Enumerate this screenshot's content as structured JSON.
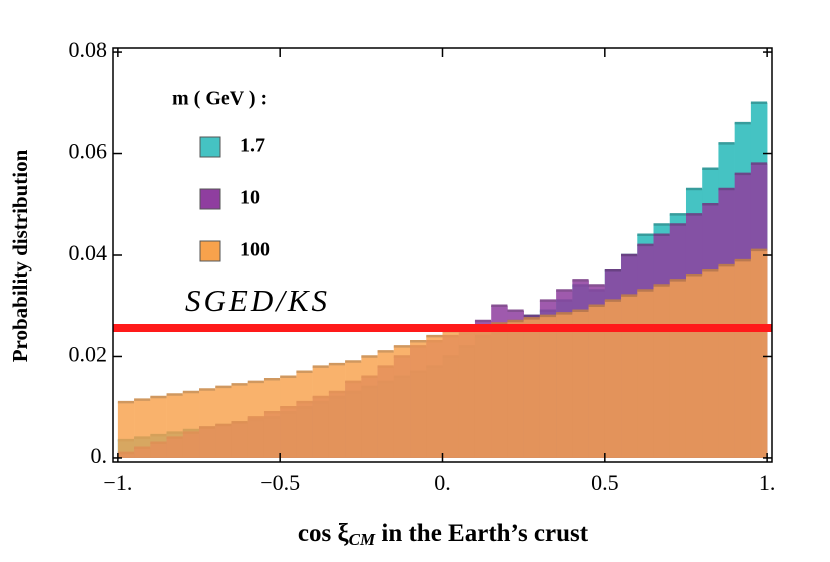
{
  "chart_data": {
    "type": "histogram",
    "y_label": "Probability distribution",
    "x_label": [
      "cos ξ",
      "CM",
      " in the Earth’s crust"
    ],
    "legend_title": "m ( GeV ) :",
    "bins": [
      -1,
      -0.95,
      -0.9,
      -0.85,
      -0.8,
      -0.75,
      -0.7,
      -0.65,
      -0.6,
      -0.55,
      -0.5,
      -0.45,
      -0.4,
      -0.35,
      -0.3,
      -0.25,
      -0.2,
      -0.15,
      -0.1,
      -0.05,
      0,
      0.05,
      0.1,
      0.15,
      0.2,
      0.25,
      0.3,
      0.35,
      0.4,
      0.45,
      0.5,
      0.55,
      0.6,
      0.65,
      0.7,
      0.75,
      0.8,
      0.85,
      0.9,
      0.95,
      1
    ],
    "series": [
      {
        "name": "1.7",
        "color": "#45c3c3",
        "values": [
          0.0035,
          0.004,
          0.0045,
          0.005,
          0.0055,
          0.006,
          0.0065,
          0.007,
          0.0075,
          0.008,
          0.009,
          0.01,
          0.011,
          0.012,
          0.013,
          0.014,
          0.015,
          0.016,
          0.017,
          0.018,
          0.02,
          0.022,
          0.024,
          0.026,
          0.027,
          0.028,
          0.029,
          0.031,
          0.034,
          0.033,
          0.037,
          0.04,
          0.044,
          0.046,
          0.048,
          0.053,
          0.057,
          0.062,
          0.066,
          0.07
        ]
      },
      {
        "name": "10",
        "color": "#8f3e9f",
        "values": [
          0.001,
          0.002,
          0.003,
          0.004,
          0.005,
          0.006,
          0.0065,
          0.007,
          0.008,
          0.009,
          0.01,
          0.011,
          0.012,
          0.013,
          0.015,
          0.016,
          0.018,
          0.02,
          0.022,
          0.023,
          0.024,
          0.026,
          0.027,
          0.03,
          0.029,
          0.028,
          0.031,
          0.033,
          0.035,
          0.034,
          0.037,
          0.04,
          0.042,
          0.044,
          0.046,
          0.048,
          0.05,
          0.053,
          0.056,
          0.058
        ]
      },
      {
        "name": "100",
        "color": "#f8a24c",
        "values": [
          0.011,
          0.0115,
          0.012,
          0.0125,
          0.013,
          0.0135,
          0.014,
          0.0145,
          0.015,
          0.0155,
          0.016,
          0.017,
          0.018,
          0.0185,
          0.019,
          0.02,
          0.021,
          0.022,
          0.023,
          0.024,
          0.025,
          0.0255,
          0.026,
          0.0265,
          0.027,
          0.0275,
          0.028,
          0.0285,
          0.029,
          0.03,
          0.031,
          0.032,
          0.033,
          0.034,
          0.035,
          0.036,
          0.037,
          0.038,
          0.039,
          0.041
        ]
      }
    ],
    "reference_line": {
      "label": "SGED/KS",
      "value": 0.0256,
      "color": "#ff1a1a"
    },
    "xlim": [
      -1.015,
      1.015
    ],
    "ylim": [
      -0.0008,
      0.0808
    ],
    "xticks": [
      {
        "value": -1,
        "label": "−1."
      },
      {
        "value": -0.5,
        "label": "−0.5"
      },
      {
        "value": 0,
        "label": "0."
      },
      0.5,
      {
        "value": 1,
        "label": "1."
      }
    ],
    "yticks": [
      {
        "value": 0,
        "label": "0."
      },
      0.02,
      0.04,
      0.06,
      0.08
    ]
  }
}
